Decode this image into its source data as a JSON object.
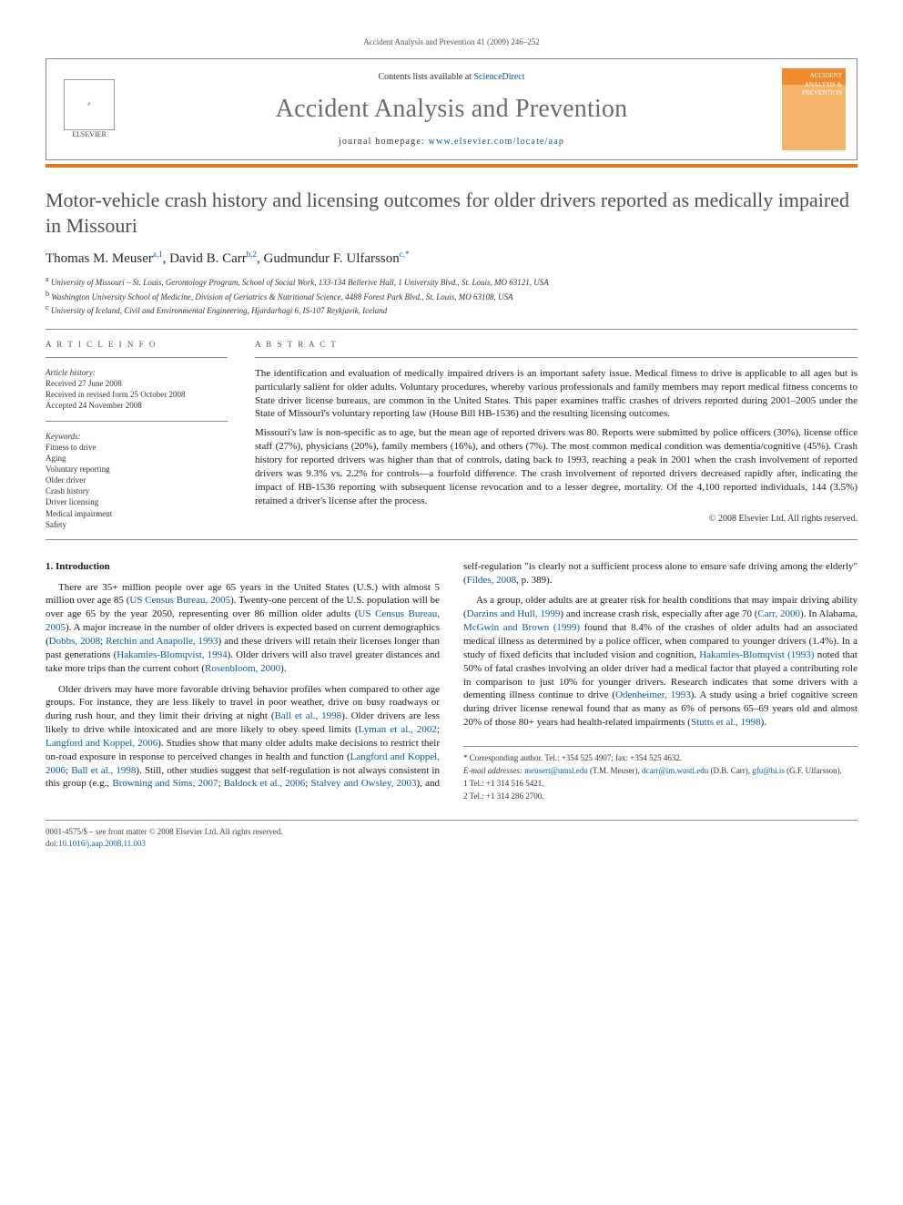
{
  "runningHeader": "Accident Analysis and Prevention 41 (2009) 246–252",
  "masthead": {
    "contentsPrefix": "Contents lists available at ",
    "contentsLink": "ScienceDirect",
    "journalName": "Accident Analysis and Prevention",
    "homepagePrefix": "journal homepage: ",
    "homepageUrl": "www.elsevier.com/locate/aap",
    "elsevierLabel": "ELSEVIER",
    "coverText": "ACCIDENT ANALYSIS & PREVENTION"
  },
  "title": "Motor-vehicle crash history and licensing outcomes for older drivers reported as medically impaired in Missouri",
  "authors": [
    {
      "name": "Thomas M. Meuser",
      "marks": "a,1"
    },
    {
      "name": "David B. Carr",
      "marks": "b,2"
    },
    {
      "name": "Gudmundur F. Ulfarsson",
      "marks": "c,*"
    }
  ],
  "authorSeparator": ", ",
  "affiliations": [
    {
      "mark": "a",
      "text": "University of Missouri – St. Louis, Gerontology Program, School of Social Work, 133-134 Bellerive Hall, 1 University Blvd., St. Louis, MO 63121, USA"
    },
    {
      "mark": "b",
      "text": "Washington University School of Medicine, Division of Geriatrics & Nutritional Science, 4488 Forest Park Blvd., St. Louis, MO 63108, USA"
    },
    {
      "mark": "c",
      "text": "University of Iceland, Civil and Environmental Engineering, Hjardarhagi 6, IS-107 Reykjavik, Iceland"
    }
  ],
  "articleInfo": {
    "head": "A R T I C L E  I N F O",
    "historyHead": "Article history:",
    "history": [
      "Received 27 June 2008",
      "Received in revised form 25 October 2008",
      "Accepted 24 November 2008"
    ],
    "keywordsHead": "Keywords:",
    "keywords": [
      "Fitness to drive",
      "Aging",
      "Voluntary reporting",
      "Older driver",
      "Crash history",
      "Driver licensing",
      "Medical impairment",
      "Safety"
    ]
  },
  "abstract": {
    "head": "A B S T R A C T",
    "paragraphs": [
      "The identification and evaluation of medically impaired drivers is an important safety issue. Medical fitness to drive is applicable to all ages but is particularly salient for older adults. Voluntary procedures, whereby various professionals and family members may report medical fitness concerns to State driver license bureaus, are common in the United States. This paper examines traffic crashes of drivers reported during 2001–2005 under the State of Missouri's voluntary reporting law (House Bill HB-1536) and the resulting licensing outcomes.",
      "Missouri's law is non-specific as to age, but the mean age of reported drivers was 80. Reports were submitted by police officers (30%), license office staff (27%), physicians (20%), family members (16%), and others (7%). The most common medical condition was dementia/cognitive (45%). Crash history for reported drivers was higher than that of controls, dating back to 1993, reaching a peak in 2001 when the crash involvement of reported drivers was 9.3% vs. 2.2% for controls—a fourfold difference. The crash involvement of reported drivers decreased rapidly after, indicating the impact of HB-1536 reporting with subsequent license revocation and to a lesser degree, mortality. Of the 4,100 reported individuals, 144 (3.5%) retained a driver's license after the process."
    ],
    "copyright": "© 2008 Elsevier Ltd. All rights reserved."
  },
  "body": {
    "sectionNumber": "1.",
    "sectionTitle": "Introduction",
    "paragraphs": [
      {
        "html": "There are 35+ million people over age 65 years in the United States (U.S.) with almost 5 million over age 85 (<a class='ref' href='#'>US Census Bureau, 2005</a>). Twenty-one percent of the U.S. population will be over age 65 by the year 2050, representing over 86 million older adults (<a class='ref' href='#'>US Census Bureau, 2005</a>). A major increase in the number of older drivers is expected based on current demographics (<a class='ref' href='#'>Dobbs, 2008</a>; <a class='ref' href='#'>Retchin and Anapolle, 1993</a>) and these drivers will retain their licenses longer than past generations (<a class='ref' href='#'>Hakamies-Blomqvist, 1994</a>). Older drivers will also travel greater distances and take more trips than the current cohort (<a class='ref' href='#'>Rosenbloom, 2000</a>)."
      },
      {
        "html": "Older drivers may have more favorable driving behavior profiles when compared to other age groups. For instance, they are less likely to travel in poor weather, drive on busy roadways or during rush hour, and they limit their driving at night (<a class='ref' href='#'>Ball et al., 1998</a>). Older drivers are less likely to drive while intoxicated and are more likely to obey speed limits (<a class='ref' href='#'>Lyman et al., 2002</a>; <a class='ref' href='#'>Langford and Koppel, 2006</a>). Studies show that many older adults make decisions to restrict their on-road exposure in response to perceived changes in health and function (<a class='ref' href='#'>Langford and Koppel, 2006</a>; <a class='ref' href='#'>Ball et al., 1998</a>). Still, other studies suggest that self-regulation is not always consistent in this group (e.g., <a class='ref' href='#'>Browning and Sims, 2007</a>; <a class='ref' href='#'>Baldock et al., 2006</a>; <a class='ref' href='#'>Stalvey and Owsley, 2003</a>), and self-regulation \"is clearly not a sufficient process alone to ensure safe driving among the elderly\" (<a class='ref' href='#'>Fildes, 2008</a>, p. 389)."
      },
      {
        "html": "As a group, older adults are at greater risk for health conditions that may impair driving ability (<a class='ref' href='#'>Darzins and Hull, 1999</a>) and increase crash risk, especially after age 70 (<a class='ref' href='#'>Carr, 2000</a>). In Alabama, <a class='ref' href='#'>McGwin and Brown (1999)</a> found that 8.4% of the crashes of older adults had an associated medical illness as determined by a police officer, when compared to younger drivers (1.4%). In a study of fixed deficits that included vision and cognition, <a class='ref' href='#'>Hakamies-Blomqvist (1993)</a> noted that 50% of fatal crashes involving an older driver had a medical factor that played a contributing role in comparison to just 10% for younger drivers. Research indicates that some drivers with a dementing illness continue to drive (<a class='ref' href='#'>Odenheimer, 1993</a>). A study using a brief cognitive screen during driver license renewal found that as many as 6% of persons 65–69 years old and almost 20% of those 80+ years had health-related impairments (<a class='ref' href='#'>Stutts et al., 1998</a>)."
      }
    ]
  },
  "footnotes": {
    "corr": "* Corresponding author. Tel.: +354 525 4907; fax: +354 525 4632.",
    "emailsLabel": "E-mail addresses:",
    "emails": [
      {
        "addr": "meusert@umsl.edu",
        "who": "(T.M. Meuser)"
      },
      {
        "addr": "dcarr@im.wustl.edu",
        "who": "(D.B. Carr)"
      },
      {
        "addr": "gfu@hi.is",
        "who": "(G.F. Ulfarsson)."
      }
    ],
    "tel1": "1 Tel.: +1 314 516 5421.",
    "tel2": "2 Tel.: +1 314 286 2700."
  },
  "bottom": {
    "line1": "0001-4575/$ – see front matter © 2008 Elsevier Ltd. All rights reserved.",
    "doiLabel": "doi:",
    "doi": "10.1016/j.aap.2008.11.003"
  }
}
